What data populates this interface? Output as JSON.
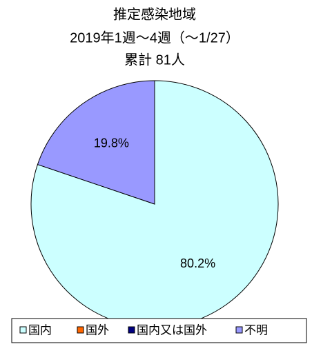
{
  "chart_data": {
    "type": "pie",
    "title": [
      "推定感染地域",
      "2019年1週～4週（～1/27）",
      "累計 81人"
    ],
    "categories": [
      "国内",
      "国外",
      "国内又は国外",
      "不明"
    ],
    "values": [
      80.2,
      0,
      0,
      19.8
    ],
    "value_labels": [
      "80.2%",
      null,
      null,
      "19.8%"
    ],
    "colors": [
      "#ccffff",
      "#ff6600",
      "#000080",
      "#9999ff"
    ],
    "legend": "bottom"
  }
}
